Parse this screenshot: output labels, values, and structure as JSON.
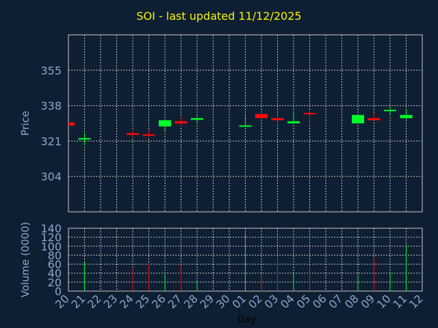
{
  "chart_data": {
    "title": "SOI - last updated 11/12/2025",
    "type": "candlestick",
    "price_axis": {
      "label": "Price",
      "ticks": [
        304,
        321,
        338,
        355
      ],
      "range": [
        287,
        372
      ]
    },
    "volume_axis": {
      "label": "Volume (0000)",
      "ticks": [
        0,
        20,
        40,
        60,
        80,
        100,
        120,
        140
      ],
      "range": [
        0,
        140
      ]
    },
    "x_axis": {
      "label": "Day",
      "ticks": [
        "20",
        "21",
        "22",
        "23",
        "24",
        "25",
        "26",
        "27",
        "28",
        "29",
        "30",
        "01",
        "02",
        "03",
        "04",
        "05",
        "06",
        "07",
        "08",
        "09",
        "10",
        "11",
        "12"
      ]
    },
    "grid": true,
    "colors": {
      "up": "#00ff2a",
      "down": "#ff0a0a",
      "grid": "#c8c8c8",
      "axis": "#8fa5c8",
      "title": "#f5f500"
    },
    "candles": [
      {
        "day": "20",
        "open": 330.0,
        "close": 328.5,
        "high": 330.0,
        "low": 328.5,
        "volume": null
      },
      {
        "day": "21",
        "open": 322.0,
        "close": 322.4,
        "high": 325.0,
        "low": 319.0,
        "volume": 65
      },
      {
        "day": "24",
        "open": 324.8,
        "close": 324.0,
        "high": 326.0,
        "low": 322.5,
        "volume": 50
      },
      {
        "day": "25",
        "open": 324.2,
        "close": 323.8,
        "high": 326.5,
        "low": 322.5,
        "volume": 62
      },
      {
        "day": "26",
        "open": 328.0,
        "close": 331.0,
        "high": 331.0,
        "low": 326.0,
        "volume": 38
      },
      {
        "day": "27",
        "open": 330.5,
        "close": 329.5,
        "high": 333.0,
        "low": 328.0,
        "volume": 58
      },
      {
        "day": "28",
        "open": 331.2,
        "close": 332.0,
        "high": 333.0,
        "low": 329.5,
        "volume": 25
      },
      {
        "day": "01",
        "open": 328.0,
        "close": 328.5,
        "high": 333.5,
        "low": 328.0,
        "volume": 130
      },
      {
        "day": "02",
        "open": 334.0,
        "close": 332.0,
        "high": 334.0,
        "low": 332.0,
        "volume": 35
      },
      {
        "day": "03",
        "open": 332.0,
        "close": 331.0,
        "high": 333.5,
        "low": 328.5,
        "volume": 78
      },
      {
        "day": "04",
        "open": 329.5,
        "close": 330.5,
        "high": 334.5,
        "low": 329.5,
        "volume": 40
      },
      {
        "day": "05",
        "open": 334.5,
        "close": 334.0,
        "high": 335.5,
        "low": 329.5,
        "volume": 58
      },
      {
        "day": "08",
        "open": 329.5,
        "close": 333.5,
        "high": 333.5,
        "low": 329.5,
        "volume": 38
      },
      {
        "day": "09",
        "open": 332.0,
        "close": 331.0,
        "high": 334.5,
        "low": 331.0,
        "volume": 75
      },
      {
        "day": "10",
        "open": 335.5,
        "close": 336.0,
        "high": 337.5,
        "low": 333.5,
        "volume": 42
      },
      {
        "day": "11",
        "open": 332.0,
        "close": 333.5,
        "high": 336.5,
        "low": 331.5,
        "volume": 105
      }
    ]
  }
}
